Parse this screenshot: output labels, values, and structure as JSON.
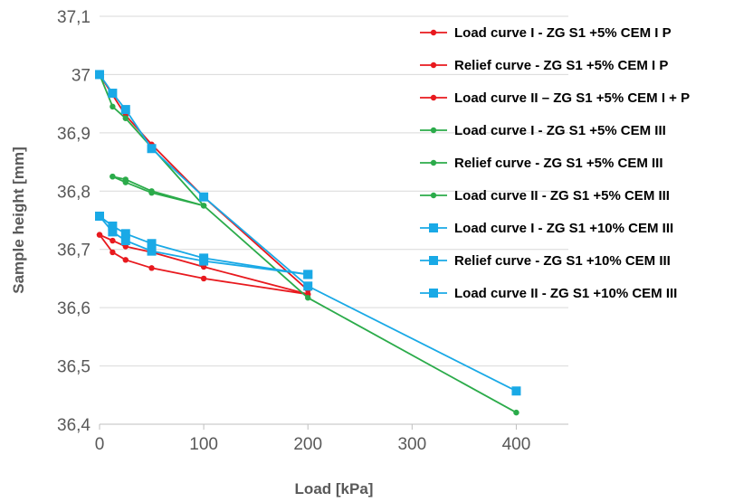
{
  "chart_data": {
    "type": "line",
    "xlabel": "Load [kPa]",
    "ylabel": "Sample height [mm]",
    "xlim": [
      0,
      450
    ],
    "ylim": [
      36.4,
      37.1
    ],
    "xticks": [
      "0",
      "100",
      "200",
      "300",
      "400"
    ],
    "yticks": [
      "36,4",
      "36,5",
      "36,6",
      "36,7",
      "36,8",
      "36,9",
      "37",
      "37,1"
    ],
    "grid": "horizontal",
    "legend_position": "right",
    "series": [
      {
        "name": "Load curve I -  ZG S1 +5% CEM I P",
        "color": "#e8191e",
        "marker": "circle",
        "x": [
          0,
          12.5,
          25,
          50,
          100,
          200
        ],
        "y": [
          37.0,
          36.965,
          36.93,
          36.88,
          36.79,
          36.63
        ]
      },
      {
        "name": "Relief curve -  ZG S1 +5% CEM I P",
        "color": "#e8191e",
        "marker": "circle",
        "x": [
          200,
          100,
          50,
          25,
          12.5,
          0
        ],
        "y": [
          36.623,
          36.67,
          36.695,
          36.705,
          36.715,
          36.725
        ]
      },
      {
        "name": "Load curve II – ZG S1 +5% CEM I + P",
        "color": "#e8191e",
        "marker": "circle",
        "x": [
          0,
          12.5,
          25,
          50,
          100,
          200
        ],
        "y": [
          36.725,
          36.695,
          36.682,
          36.668,
          36.65,
          36.623
        ]
      },
      {
        "name": "Load curve I -  ZG S1 +5% CEM III",
        "color": "#2bab4a",
        "marker": "circle",
        "x": [
          0,
          12.5,
          25,
          50,
          100,
          200,
          400
        ],
        "y": [
          37.0,
          36.945,
          36.925,
          36.875,
          36.775,
          36.617,
          36.42
        ]
      },
      {
        "name": "Relief curve -  ZG S1 +5% CEM III",
        "color": "#2bab4a",
        "marker": "circle",
        "x": [
          100,
          50,
          25,
          12.5
        ],
        "y": [
          36.775,
          36.8,
          36.82,
          36.825
        ]
      },
      {
        "name": "Load curve II -  ZG S1 +5% CEM III",
        "color": "#2bab4a",
        "marker": "circle",
        "x": [
          12.5,
          25,
          50,
          100
        ],
        "y": [
          36.825,
          36.815,
          36.797,
          36.775
        ]
      },
      {
        "name": "Load curve I -  ZG S1 +10% CEM III",
        "color": "#19a9e6",
        "marker": "square",
        "x": [
          0,
          12.5,
          25,
          50,
          100,
          200,
          400
        ],
        "y": [
          37.0,
          36.968,
          36.94,
          36.873,
          36.79,
          36.637,
          36.457
        ]
      },
      {
        "name": "Relief curve -  ZG S1 +10% CEM III",
        "color": "#19a9e6",
        "marker": "square",
        "x": [
          200,
          100,
          50,
          25,
          12.5,
          0
        ],
        "y": [
          36.657,
          36.68,
          36.697,
          36.715,
          36.73,
          36.757
        ]
      },
      {
        "name": "Load curve II -  ZG S1 +10% CEM III",
        "color": "#19a9e6",
        "marker": "square",
        "x": [
          0,
          12.5,
          25,
          50,
          100,
          200
        ],
        "y": [
          36.757,
          36.74,
          36.727,
          36.71,
          36.685,
          36.657
        ]
      }
    ]
  }
}
